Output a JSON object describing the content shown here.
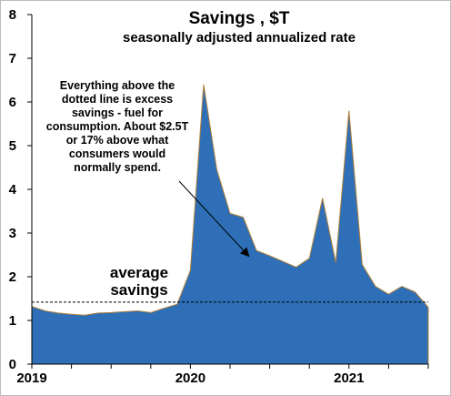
{
  "chart_data": {
    "type": "area",
    "title": "Savings , $T",
    "subtitle": "seasonally adjusted annualized rate",
    "xlabel": "",
    "ylabel": "",
    "ylim": [
      0,
      8
    ],
    "y_ticks": [
      "0",
      "1",
      "2",
      "3",
      "4",
      "5",
      "6",
      "7",
      "8"
    ],
    "x_ticks": [
      "2019",
      "2020",
      "2021"
    ],
    "xlim": [
      "2019-01",
      "2021-07"
    ],
    "grid": false,
    "legend": "none",
    "fill_color": "#2e6fb7",
    "edge_color": "#b0803a",
    "series": [
      {
        "x": [
          "2019-01",
          "2019-02",
          "2019-03",
          "2019-04",
          "2019-05",
          "2019-06",
          "2019-07",
          "2019-08",
          "2019-09",
          "2019-10",
          "2019-11",
          "2019-12",
          "2020-01",
          "2020-02",
          "2020-03",
          "2020-04",
          "2020-05",
          "2020-06",
          "2020-07",
          "2020-08",
          "2020-09",
          "2020-10",
          "2020-11",
          "2020-12",
          "2021-01",
          "2021-02",
          "2021-03",
          "2021-04",
          "2021-05",
          "2021-06",
          "2021-07"
        ],
        "values": [
          1.32,
          1.22,
          1.17,
          1.14,
          1.12,
          1.17,
          1.18,
          1.2,
          1.22,
          1.18,
          1.28,
          1.37,
          2.15,
          6.4,
          4.45,
          3.45,
          3.36,
          2.6,
          2.48,
          2.35,
          2.22,
          2.42,
          3.8,
          2.32,
          5.8,
          2.28,
          1.78,
          1.6,
          1.78,
          1.65,
          1.3
        ]
      }
    ],
    "average_line": {
      "value": 1.42,
      "label_line1": "average",
      "label_line2": "savings"
    },
    "annotation": {
      "lines": [
        "Everything above the",
        "dotted line is excess",
        "savings - fuel for",
        "consumption. About $2.5T",
        "or 17%  above what",
        "consumers would",
        "normally spend."
      ],
      "arrow_to": {
        "x": "2020-06",
        "y": 2.4
      }
    }
  }
}
